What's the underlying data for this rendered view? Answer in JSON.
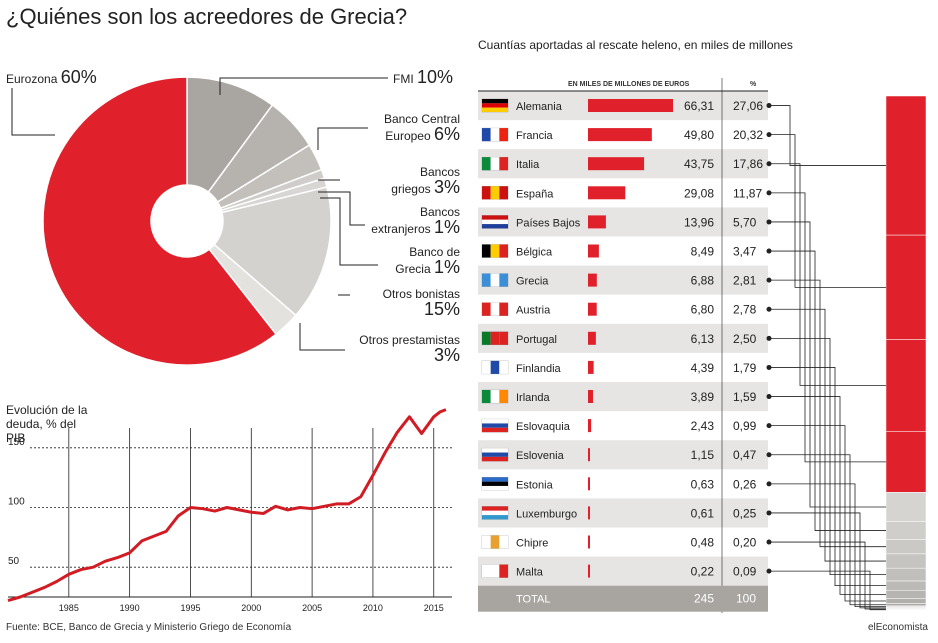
{
  "title": "¿Quiénes son los acreedores de Grecia?",
  "right_subtitle": "Cuantías aportadas al rescate heleno, en miles de millones",
  "footer_source": "Fuente: BCE, Banco de Grecia y Ministerio Griego de Economía",
  "footer_brand": "elEconomista",
  "colors": {
    "red": "#e0202a",
    "gray1": "#a7a39e",
    "gray2": "#b9b5b1",
    "gray3": "#c9c6c2",
    "gray4": "#d8d6d3",
    "row_alt": "#e6e5e3",
    "total": "#a8a5a1"
  },
  "chart_data": [
    {
      "type": "pie",
      "title": "",
      "slices": [
        {
          "name": "Eurozona",
          "pct_label": "60%",
          "value": 60,
          "color": "#e0202a"
        },
        {
          "name": "FMI",
          "pct_label": "10%",
          "value": 10,
          "color": "#a9a5a0"
        },
        {
          "name": "Banco Central Europeo",
          "pct_label": "6%",
          "value": 6,
          "color": "#b6b2ae"
        },
        {
          "name": "Bancos griegos",
          "pct_label": "3%",
          "value": 3,
          "color": "#c3c0bc"
        },
        {
          "name": "Bancos extranjeros",
          "pct_label": "1%",
          "value": 1,
          "color": "#cfccc9"
        },
        {
          "name": "Banco de Grecia",
          "pct_label": "1%",
          "value": 1,
          "color": "#d8d6d3"
        },
        {
          "name": "Otros bonistas",
          "pct_label": "15%",
          "value": 15,
          "color": "#d4d2cf"
        },
        {
          "name": "Otros prestamistas",
          "pct_label": "3%",
          "value": 3,
          "color": "#e4e2df"
        }
      ]
    },
    {
      "type": "line",
      "title": "Evolución de la deuda, % del PIB",
      "x_ticks": [
        "1985",
        "1990",
        "1995",
        "2000",
        "2005",
        "2010",
        "2015"
      ],
      "y_ticks": [
        "50",
        "100",
        "150"
      ],
      "ylim": [
        25,
        175
      ],
      "xlim": [
        1980,
        2016.5
      ],
      "x": [
        1980,
        1981,
        1982,
        1983,
        1984,
        1985,
        1986,
        1987,
        1988,
        1989,
        1990,
        1991,
        1992,
        1993,
        1994,
        1995,
        1996,
        1997,
        1998,
        1999,
        2000,
        2001,
        2002,
        2003,
        2004,
        2005,
        2006,
        2007,
        2008,
        2009,
        2010,
        2011,
        2012,
        2013,
        2014,
        2015,
        2015.5,
        2016
      ],
      "values": [
        22,
        25,
        29,
        33,
        38,
        44,
        48,
        50,
        55,
        58,
        62,
        72,
        76,
        80,
        93,
        100,
        99,
        97,
        100,
        98,
        96,
        95,
        101,
        98,
        100,
        99,
        101,
        103,
        103,
        109,
        127,
        146,
        163,
        176,
        162,
        176,
        180,
        182
      ]
    },
    {
      "type": "bar",
      "title": "Cuantías aportadas al rescate heleno, en miles de millones",
      "header_value": "EN MILES DE MILLONES DE EUROS",
      "header_pct": "%",
      "categories": [
        "Alemania",
        "Francia",
        "Italia",
        "España",
        "Países Bajos",
        "Bélgica",
        "Grecia",
        "Austria",
        "Portugal",
        "Finlandia",
        "Irlanda",
        "Eslovaquia",
        "Eslovenia",
        "Estonia",
        "Luxemburgo",
        "Chipre",
        "Malta"
      ],
      "values": [
        66.31,
        49.8,
        43.75,
        29.08,
        13.96,
        8.49,
        6.88,
        6.8,
        6.13,
        4.39,
        3.89,
        2.43,
        1.15,
        0.63,
        0.61,
        0.48,
        0.22
      ],
      "value_labels": [
        "66,31",
        "49,80",
        "43,75",
        "29,08",
        "13,96",
        "8,49",
        "6,88",
        "6,80",
        "6,13",
        "4,39",
        "3,89",
        "2,43",
        "1,15",
        "0,63",
        "0,61",
        "0,48",
        "0,22"
      ],
      "pct_labels": [
        "27,06",
        "20,32",
        "17,86",
        "11,87",
        "5,70",
        "3,47",
        "2,81",
        "2,78",
        "2,50",
        "1,79",
        "1,59",
        "0,99",
        "0,47",
        "0,26",
        "0,25",
        "0,20",
        "0,09"
      ],
      "total_label": "TOTAL",
      "total_value": "245",
      "total_pct": "100"
    }
  ]
}
